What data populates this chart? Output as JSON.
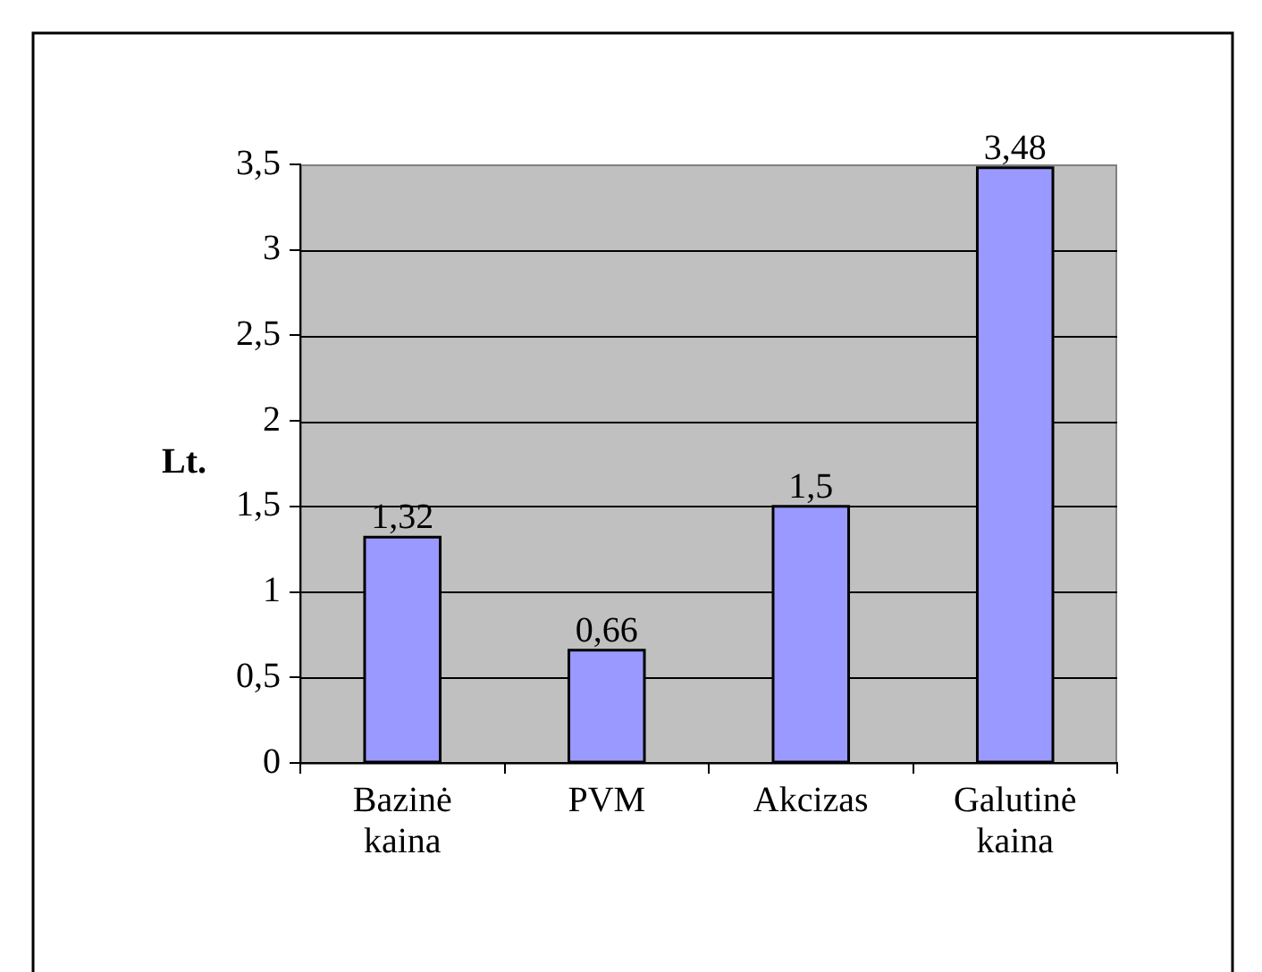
{
  "chart_data": {
    "type": "bar",
    "ylabel": "Lt.",
    "categories": [
      "Bazinė kaina",
      "PVM",
      "Akcizas",
      "Galutinė kaina"
    ],
    "values": [
      1.32,
      0.66,
      1.5,
      3.48
    ],
    "value_labels": [
      "1,32",
      "0,66",
      "1,5",
      "3,48"
    ],
    "color": "#9999ff",
    "ylim": [
      0,
      3.5
    ],
    "yticks": [
      0,
      {
        "value": 0.5,
        "label": "0,5"
      },
      1,
      {
        "value": 1.5,
        "label": "1,5"
      },
      2,
      {
        "value": 2.5,
        "label": "2,5"
      },
      3,
      {
        "value": 3.5,
        "label": "3,5"
      }
    ],
    "grid": true
  }
}
